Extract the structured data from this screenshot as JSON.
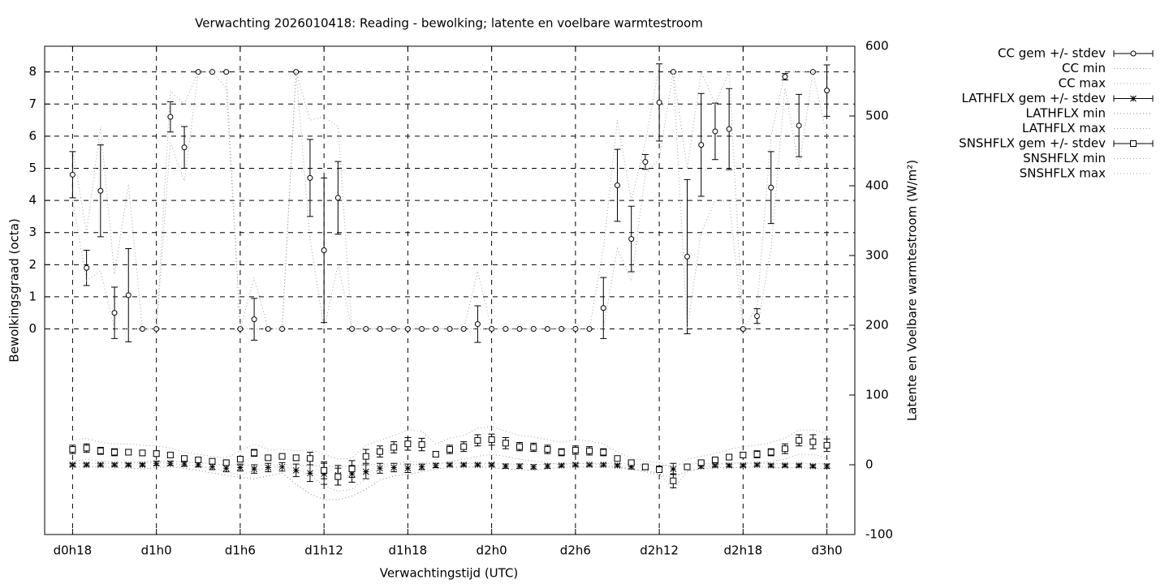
{
  "chart_data": {
    "type": "errorbar",
    "title": "Verwachting 2026010418: Reading - bewolking; latente en voelbare warmtestroom",
    "xlabel": "Verwachtingstijd (UTC)",
    "ylabel": "Bewolkingsgraad (octa)",
    "y2label": "Latente en Voelbare warmtestroom (W/m²)",
    "x": [
      18,
      19,
      20,
      21,
      22,
      23,
      24,
      25,
      26,
      27,
      28,
      29,
      30,
      31,
      32,
      33,
      34,
      35,
      36,
      37,
      38,
      39,
      40,
      41,
      42,
      43,
      44,
      45,
      46,
      47,
      48,
      49,
      50,
      51,
      52,
      53,
      54,
      55,
      56,
      57,
      58,
      59,
      60,
      61,
      62,
      63,
      64,
      65,
      66,
      67,
      68,
      69,
      70,
      71,
      72
    ],
    "xlim": [
      16,
      74
    ],
    "xticks": [
      {
        "value": 18,
        "label": "d0h18"
      },
      {
        "value": 24,
        "label": "d1h0"
      },
      {
        "value": 30,
        "label": "d1h6"
      },
      {
        "value": 36,
        "label": "d1h12"
      },
      {
        "value": 42,
        "label": "d1h18"
      },
      {
        "value": 48,
        "label": "d2h0"
      },
      {
        "value": 54,
        "label": "d2h6"
      },
      {
        "value": 60,
        "label": "d2h12"
      },
      {
        "value": 66,
        "label": "d2h18"
      },
      {
        "value": 72,
        "label": "d3h0"
      }
    ],
    "ylim": [
      -6.4,
      8.8
    ],
    "yticks": [
      0,
      1,
      2,
      3,
      4,
      5,
      6,
      7,
      8
    ],
    "y2lim": [
      -100,
      600
    ],
    "y2ticks": [
      -100,
      0,
      100,
      200,
      300,
      400,
      500,
      600
    ],
    "grid": true,
    "legend": "top-right",
    "series": [
      {
        "name": "CC gem +/- stdev",
        "style": "errorbars",
        "marker": "circle",
        "color": "#000000",
        "axis": "y",
        "values": [
          4.8,
          1.9,
          4.3,
          0.5,
          1.05,
          0,
          0,
          6.6,
          5.65,
          8,
          8,
          8,
          0,
          0.3,
          0,
          0,
          8,
          4.7,
          2.45,
          4.08,
          0,
          0,
          0,
          0,
          0,
          0,
          0,
          0,
          0,
          0.15,
          0,
          0,
          0,
          0,
          0,
          0,
          0,
          0,
          0.65,
          4.47,
          2.8,
          5.2,
          7.05,
          8,
          2.25,
          5.73,
          6.15,
          6.22,
          0,
          0.4,
          4.4,
          7.85,
          6.33,
          8,
          7.42
        ],
        "errors": [
          0.72,
          0.55,
          1.43,
          0.8,
          1.45,
          0,
          0,
          0.47,
          0.65,
          0,
          0,
          0,
          0,
          0.65,
          0,
          0,
          0,
          1.2,
          2.25,
          1.13,
          0,
          0,
          0,
          0,
          0,
          0,
          0,
          0,
          0,
          0.57,
          0,
          0,
          0,
          0,
          0,
          0,
          0,
          0,
          0.95,
          1.12,
          1.02,
          0.23,
          1.2,
          0,
          2.4,
          1.6,
          0.88,
          1.26,
          0,
          0.23,
          1.12,
          0.1,
          0.97,
          0,
          0.8
        ]
      },
      {
        "name": "CC min",
        "style": "dotted",
        "color": "#a0a0a0",
        "axis": "y",
        "values": [
          4,
          1.5,
          1.8,
          0,
          0,
          0,
          0,
          5.8,
          4.6,
          8,
          8,
          7.5,
          0,
          0,
          0,
          0,
          8,
          2.8,
          0,
          2,
          0,
          0,
          0,
          0,
          0,
          0,
          0,
          0,
          0,
          0,
          0,
          0,
          0,
          0,
          0,
          0,
          0,
          0,
          0,
          2.5,
          1.5,
          4.8,
          5.3,
          8,
          0,
          3,
          4,
          4,
          0,
          0,
          2.5,
          7.5,
          5,
          8,
          6
        ]
      },
      {
        "name": "CC max",
        "style": "dotted",
        "color": "#a0a0a0",
        "axis": "y",
        "values": [
          5.6,
          3,
          6.3,
          1.7,
          4.5,
          0,
          0,
          7.4,
          7,
          8,
          8,
          8,
          0,
          1.6,
          0,
          0,
          8,
          6.5,
          6.6,
          6.3,
          0,
          0,
          0,
          0,
          0,
          0,
          0,
          0,
          0,
          1.8,
          0,
          0,
          0,
          0,
          0,
          0,
          0,
          0,
          2.5,
          6.5,
          4,
          5.8,
          8.2,
          8,
          5,
          8,
          7,
          8,
          0,
          0.7,
          6,
          8,
          8,
          8,
          8
        ]
      },
      {
        "name": "LATHFLX gem +/- stdev",
        "style": "errorbars",
        "marker": "asterisk",
        "color": "#000000",
        "axis": "y2",
        "values": [
          0,
          0,
          0,
          0,
          0,
          0,
          2,
          2,
          1,
          0,
          -3,
          -5,
          -4,
          -6,
          -4,
          -3,
          -8,
          -12,
          -13,
          -15,
          -13,
          -10,
          -5,
          -4,
          -5,
          -3,
          -1,
          0,
          0,
          0,
          0,
          -2,
          -2,
          -3,
          -2,
          -1,
          0,
          0,
          0,
          -1,
          -3,
          -4,
          -6,
          -6,
          -3,
          -2,
          -1,
          -1,
          -1,
          0,
          -1,
          -1,
          -1,
          -2,
          -2
        ],
        "errors": [
          2,
          2,
          2,
          2,
          2,
          2,
          3,
          3,
          3,
          3,
          4,
          5,
          5,
          6,
          6,
          6,
          9,
          12,
          15,
          14,
          12,
          10,
          7,
          6,
          6,
          4,
          3,
          2,
          2,
          2,
          2,
          3,
          3,
          3,
          3,
          2,
          2,
          2,
          2,
          2,
          3,
          3,
          4,
          8,
          4,
          3,
          2,
          2,
          2,
          2,
          2,
          2,
          2,
          2,
          3
        ]
      },
      {
        "name": "LATHFLX min",
        "style": "dotted",
        "color": "#808080",
        "axis": "y2",
        "values": [
          -3,
          -3,
          -3,
          -4,
          -5,
          -6,
          -4,
          -3,
          -5,
          -8,
          -12,
          -15,
          -18,
          -20,
          -16,
          -12,
          -28,
          -42,
          -50,
          -50,
          -45,
          -35,
          -22,
          -16,
          -14,
          -10,
          -6,
          -4,
          -3,
          -3,
          -4,
          -6,
          -7,
          -8,
          -6,
          -4,
          -3,
          -3,
          -3,
          -4,
          -7,
          -10,
          -14,
          -18,
          -9,
          -6,
          -4,
          -4,
          -4,
          -3,
          -4,
          -4,
          -4,
          -5,
          -6
        ]
      },
      {
        "name": "LATHFLX max",
        "style": "dotted",
        "color": "#a0a0a0",
        "axis": "y2",
        "values": [
          2,
          2,
          2,
          2,
          3,
          4,
          5,
          5,
          4,
          3,
          1,
          0,
          0,
          -1,
          0,
          0,
          0,
          -2,
          -1,
          -3,
          -2,
          0,
          1,
          1,
          0,
          1,
          2,
          2,
          2,
          2,
          2,
          1,
          1,
          0,
          1,
          2,
          2,
          2,
          2,
          2,
          1,
          0,
          -1,
          0,
          1,
          2,
          2,
          2,
          2,
          2,
          2,
          2,
          2,
          2,
          1
        ]
      },
      {
        "name": "SNSHFLX gem +/- stdev",
        "style": "errorbars",
        "marker": "square",
        "color": "#000000",
        "axis": "y2",
        "values": [
          22,
          24,
          20,
          18,
          18,
          17,
          16,
          14,
          9,
          7,
          5,
          3,
          8,
          17,
          10,
          12,
          10,
          9,
          -8,
          -17,
          -6,
          12,
          19,
          25,
          30,
          29,
          15,
          22,
          26,
          35,
          36,
          31,
          26,
          25,
          22,
          18,
          21,
          20,
          18,
          9,
          3,
          -3,
          -7,
          -23,
          -3,
          3,
          7,
          11,
          14,
          15,
          18,
          23,
          35,
          33,
          28
        ],
        "errors": [
          6,
          6,
          5,
          5,
          4,
          4,
          4,
          3,
          3,
          3,
          2,
          2,
          4,
          5,
          3,
          3,
          4,
          9,
          12,
          12,
          12,
          10,
          8,
          8,
          9,
          9,
          4,
          6,
          7,
          8,
          8,
          8,
          6,
          6,
          6,
          5,
          6,
          6,
          5,
          3,
          2,
          2,
          3,
          10,
          2,
          2,
          2,
          3,
          4,
          5,
          5,
          7,
          8,
          10,
          9
        ]
      },
      {
        "name": "SNSHFLX min",
        "style": "dotted",
        "color": "#a0a0a0",
        "axis": "y2",
        "values": [
          5,
          8,
          5,
          4,
          3,
          3,
          3,
          2,
          0,
          -2,
          -5,
          -10,
          -15,
          -8,
          -5,
          -3,
          -5,
          -15,
          -30,
          -38,
          -35,
          -20,
          -5,
          0,
          5,
          3,
          0,
          5,
          8,
          12,
          15,
          12,
          8,
          5,
          3,
          0,
          2,
          2,
          0,
          -3,
          -5,
          -8,
          -12,
          -35,
          -10,
          -5,
          0,
          2,
          3,
          3,
          5,
          8,
          15,
          15,
          10
        ]
      },
      {
        "name": "SNSHFLX max",
        "style": "dotted",
        "color": "#a0a0a0",
        "axis": "y2",
        "values": [
          35,
          38,
          32,
          30,
          30,
          28,
          27,
          24,
          18,
          15,
          12,
          10,
          20,
          30,
          22,
          22,
          20,
          22,
          15,
          8,
          10,
          28,
          35,
          42,
          50,
          48,
          30,
          38,
          42,
          52,
          55,
          48,
          42,
          40,
          36,
          32,
          36,
          34,
          30,
          18,
          10,
          5,
          3,
          -5,
          8,
          12,
          16,
          22,
          26,
          28,
          32,
          38,
          50,
          50,
          45
        ]
      }
    ]
  }
}
